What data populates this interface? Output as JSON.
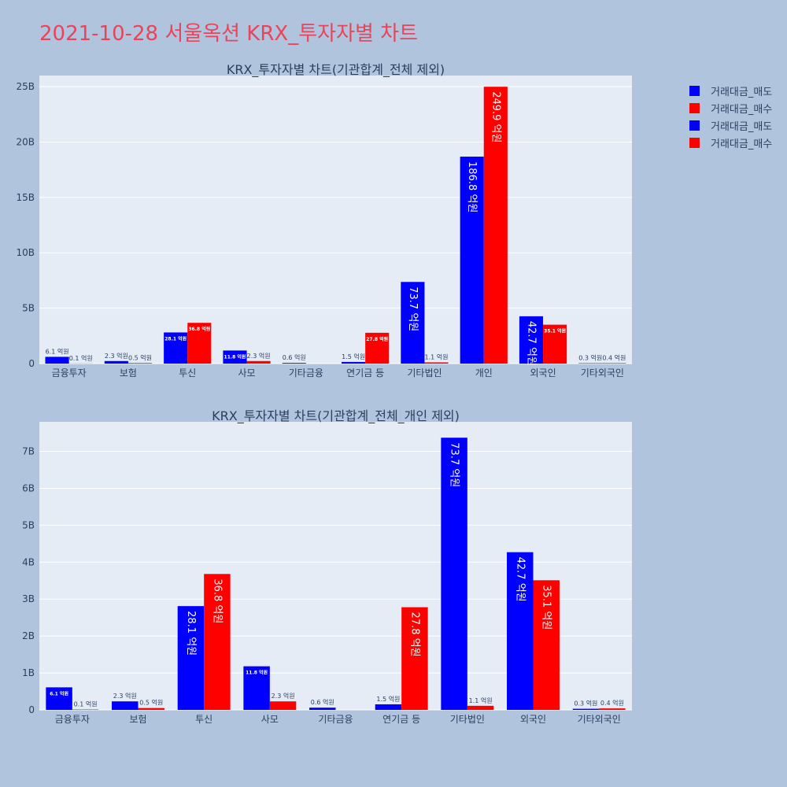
{
  "page": {
    "title": "2021-10-28 서울옥션 KRX_투자자별 차트"
  },
  "colors": {
    "sell": "#0000ff",
    "buy": "#ff0000",
    "plot_bg": "#e5ecf6",
    "page_bg": "#b0c4de",
    "grid": "#ffffff",
    "text": "#2a3f5f",
    "title_color": "#e8455a"
  },
  "legend": [
    {
      "label": "거래대금_매도",
      "color": "#0000ff"
    },
    {
      "label": "거래대금_매수",
      "color": "#ff0000"
    },
    {
      "label": "거래대금_매도",
      "color": "#0000ff"
    },
    {
      "label": "거래대금_매수",
      "color": "#ff0000"
    }
  ],
  "chart_data": [
    {
      "type": "bar",
      "title": "KRX_투자자별 차트(기관합계_전체 제외)",
      "categories": [
        "금융투자",
        "보험",
        "투신",
        "사모",
        "기타금융",
        "연기금 등",
        "기타법인",
        "개인",
        "외국인",
        "기타외국인"
      ],
      "series": [
        {
          "name": "거래대금_매도",
          "color": "#0000ff",
          "values": [
            610000000,
            230000000,
            2810000000,
            1180000000,
            60000000,
            150000000,
            7370000000,
            18680000000,
            4270000000,
            30000000
          ],
          "labels": [
            "6.1 억원",
            "2.3 억원",
            "28.1 억원",
            "11.8 억원",
            "0.6 억원",
            "1.5 억원",
            "73.7 억원",
            "186.8 억원",
            "42.7 억원",
            "0.3 억원"
          ]
        },
        {
          "name": "거래대금_매수",
          "color": "#ff0000",
          "values": [
            10000000,
            50000000,
            3680000000,
            230000000,
            0,
            2780000000,
            110000000,
            24990000000,
            3510000000,
            40000000
          ],
          "labels": [
            "0.1 억원",
            "0.5 억원",
            "36.8 억원",
            "2.3 억원",
            "",
            "27.8 억원",
            "1.1 억원",
            "249.9 억원",
            "35.1 억원",
            "0.4 억원"
          ]
        }
      ],
      "ylim": [
        0,
        26000000000
      ],
      "yticks": [
        0,
        5000000000,
        10000000000,
        15000000000,
        20000000000,
        25000000000
      ],
      "ytick_labels": [
        "0",
        "5B",
        "10B",
        "15B",
        "20B",
        "25B"
      ],
      "grid": true
    },
    {
      "type": "bar",
      "title": "KRX_투자자별 차트(기관합계_전체_개인 제외)",
      "categories": [
        "금융투자",
        "보험",
        "투신",
        "사모",
        "기타금융",
        "연기금 등",
        "기타법인",
        "외국인",
        "기타외국인"
      ],
      "series": [
        {
          "name": "거래대금_매도",
          "color": "#0000ff",
          "values": [
            610000000,
            230000000,
            2810000000,
            1180000000,
            60000000,
            150000000,
            7370000000,
            4270000000,
            30000000
          ],
          "labels": [
            "6.1 억원",
            "2.3 억원",
            "28.1 억원",
            "11.8 억원",
            "0.6 억원",
            "1.5 억원",
            "73.7 억원",
            "42.7 억원",
            "0.3 억원"
          ]
        },
        {
          "name": "거래대금_매수",
          "color": "#ff0000",
          "values": [
            10000000,
            50000000,
            3680000000,
            230000000,
            0,
            2780000000,
            110000000,
            3510000000,
            40000000
          ],
          "labels": [
            "0.1 억원",
            "0.5 억원",
            "36.8 억원",
            "2.3 억원",
            "",
            "27.8 억원",
            "1.1 억원",
            "35.1 억원",
            "0.4 억원"
          ]
        }
      ],
      "ylim": [
        0,
        7800000000
      ],
      "yticks": [
        0,
        1000000000,
        2000000000,
        3000000000,
        4000000000,
        5000000000,
        6000000000,
        7000000000
      ],
      "ytick_labels": [
        "0",
        "1B",
        "2B",
        "3B",
        "4B",
        "5B",
        "6B",
        "7B"
      ],
      "grid": true
    }
  ]
}
